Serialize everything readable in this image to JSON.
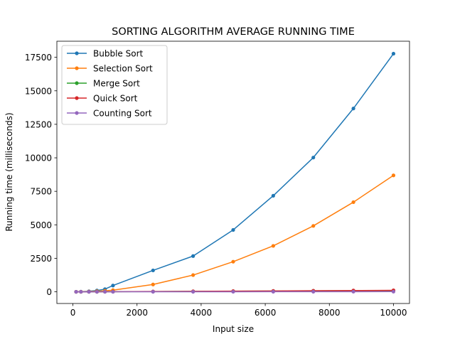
{
  "chart_data": {
    "type": "line",
    "title": "SORTING ALGORITHM AVERAGE RUNNING TIME",
    "xlabel": "Input size",
    "ylabel": "Running time (milliseconds)",
    "xlim": [
      -500,
      10500
    ],
    "ylim": [
      -870,
      18700
    ],
    "xticks": [
      0,
      2000,
      4000,
      6000,
      8000,
      10000
    ],
    "yticks": [
      0,
      2500,
      5000,
      7500,
      10000,
      12500,
      15000,
      17500
    ],
    "grid": false,
    "legend_position": "top-left",
    "x": [
      100,
      250,
      500,
      750,
      1000,
      1250,
      2500,
      3750,
      5000,
      6250,
      7500,
      8750,
      10000
    ],
    "series": [
      {
        "name": "Bubble Sort",
        "color": "#1f77b4",
        "values": [
          2,
          10,
          40,
          100,
          200,
          470,
          1600,
          2670,
          4620,
          7170,
          10020,
          13680,
          17770
        ]
      },
      {
        "name": "Selection Sort",
        "color": "#ff7f0e",
        "values": [
          1,
          5,
          20,
          45,
          80,
          125,
          550,
          1250,
          2250,
          3430,
          4920,
          6690,
          8690
        ]
      },
      {
        "name": "Merge Sort",
        "color": "#2ca02c",
        "values": [
          1,
          2,
          4,
          6,
          8,
          10,
          21,
          33,
          45,
          57,
          70,
          82,
          95
        ]
      },
      {
        "name": "Quick Sort",
        "color": "#d62728",
        "values": [
          1,
          2,
          4,
          6,
          8,
          11,
          24,
          38,
          53,
          67,
          82,
          97,
          112
        ]
      },
      {
        "name": "Counting Sort",
        "color": "#9467bd",
        "values": [
          1,
          1,
          1,
          2,
          2,
          2,
          4,
          6,
          8,
          10,
          12,
          14,
          16
        ]
      }
    ]
  }
}
